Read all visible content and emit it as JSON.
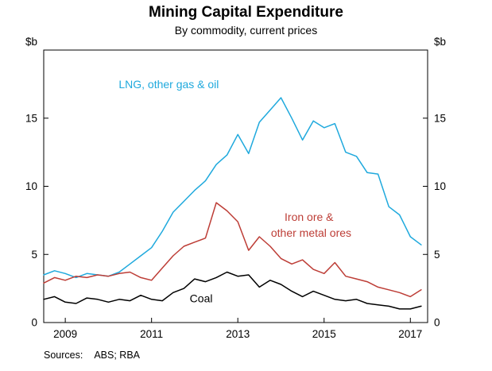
{
  "header": {
    "title": "Mining Capital Expenditure",
    "subtitle": "By commodity, current prices"
  },
  "footer": {
    "sources_label": "Sources:",
    "sources_value": "ABS; RBA"
  },
  "chart_data": {
    "type": "line",
    "title": "Mining Capital Expenditure",
    "subtitle": "By commodity, current prices",
    "unit_label": "$b",
    "ylim": [
      0,
      20
    ],
    "yticks": [
      0,
      5,
      10,
      15
    ],
    "xlim": [
      2008.5,
      2017.4
    ],
    "xticks": [
      2009,
      2011,
      2013,
      2015,
      2017
    ],
    "x_start": 2008.5,
    "x_step": 0.25,
    "grid": false,
    "legend": "inline-annotations",
    "series": [
      {
        "name": "LNG, other gas & oil",
        "color": "#1FA9DD",
        "values": [
          3.5,
          3.8,
          3.6,
          3.3,
          3.6,
          3.5,
          3.4,
          3.7,
          4.3,
          4.9,
          5.5,
          6.7,
          8.1,
          8.9,
          9.7,
          10.4,
          11.6,
          12.3,
          13.8,
          12.4,
          14.7,
          15.6,
          16.5,
          15.0,
          13.4,
          14.8,
          14.3,
          14.6,
          12.5,
          12.2,
          11.0,
          10.9,
          8.5,
          7.9,
          6.3,
          5.7
        ]
      },
      {
        "name": "Iron ore & other metal ores",
        "color": "#BD3D36",
        "values": [
          2.9,
          3.3,
          3.1,
          3.4,
          3.3,
          3.5,
          3.4,
          3.6,
          3.7,
          3.3,
          3.1,
          4.0,
          4.9,
          5.6,
          5.9,
          6.2,
          8.8,
          8.2,
          7.4,
          5.3,
          6.3,
          5.6,
          4.7,
          4.3,
          4.6,
          3.9,
          3.6,
          4.4,
          3.4,
          3.2,
          3.0,
          2.6,
          2.4,
          2.2,
          1.9,
          2.4
        ]
      },
      {
        "name": "Coal",
        "color": "#000000",
        "values": [
          1.7,
          1.9,
          1.5,
          1.4,
          1.8,
          1.7,
          1.5,
          1.7,
          1.6,
          2.0,
          1.7,
          1.6,
          2.2,
          2.5,
          3.2,
          3.0,
          3.3,
          3.7,
          3.4,
          3.5,
          2.6,
          3.1,
          2.8,
          2.3,
          1.9,
          2.3,
          2.0,
          1.7,
          1.6,
          1.7,
          1.4,
          1.3,
          1.2,
          1.0,
          1.0,
          1.2
        ]
      }
    ],
    "annotations": [
      {
        "text": "LNG, other gas & oil",
        "x": 2011.4,
        "y": 17.2,
        "color": "#1FA9DD"
      },
      {
        "text": "Iron ore &",
        "x": 2014.65,
        "y": 7.45,
        "color": "#BD3D36"
      },
      {
        "text": "other metal ores",
        "x": 2014.7,
        "y": 6.3,
        "color": "#BD3D36"
      },
      {
        "text": "Coal",
        "x": 2012.15,
        "y": 1.5,
        "color": "#000000"
      }
    ]
  }
}
